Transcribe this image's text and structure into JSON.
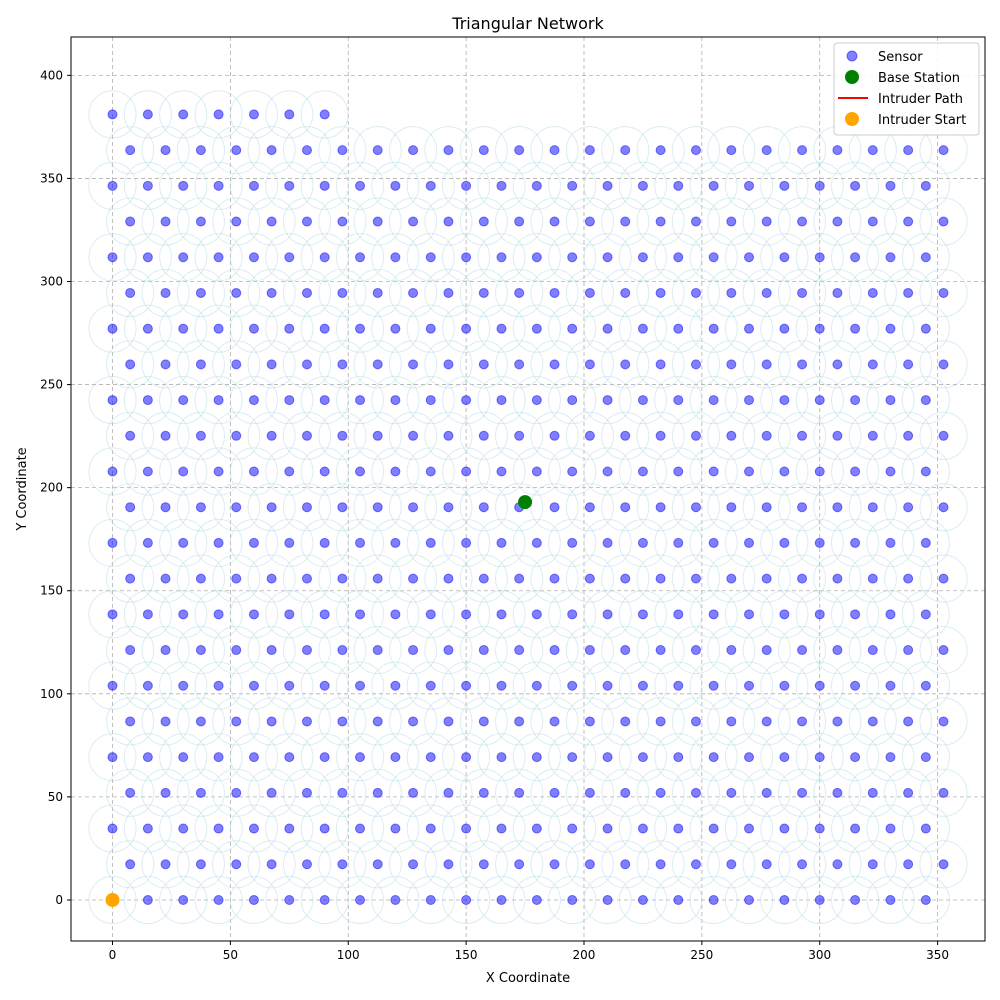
{
  "chart_data": {
    "type": "scatter",
    "title": "Triangular Network",
    "xlabel": "X Coordinate",
    "ylabel": "Y Coordinate",
    "xlim": [
      -17.6,
      370.1
    ],
    "ylim": [
      -19.9,
      418.6
    ],
    "xticks": [
      0,
      50,
      100,
      150,
      200,
      250,
      300,
      350
    ],
    "yticks": [
      0,
      50,
      100,
      150,
      200,
      250,
      300,
      350,
      400
    ],
    "grid": true,
    "legend_position": "top-right",
    "sensor_grid": {
      "row_spacing": 17.32,
      "x_spacing": 15,
      "even_row_x_start": 0,
      "odd_row_x_start": 7.5,
      "rows": 23,
      "x_max": 352.5,
      "last_row_x_max": 97.5,
      "coverage_radius": 10
    },
    "series": [
      {
        "name": "Sensor",
        "color": "#0000ff",
        "marker": "circle",
        "alpha": 0.5
      },
      {
        "name": "Base Station",
        "color": "#008000",
        "marker": "circle",
        "points": [
          [
            175,
            193
          ]
        ]
      },
      {
        "name": "Intruder Path",
        "color": "#ff0000",
        "marker": "line",
        "points": []
      },
      {
        "name": "Intruder Start",
        "color": "#ffa500",
        "marker": "circle",
        "points": [
          [
            0,
            0
          ]
        ]
      }
    ],
    "coverage_color": "#add8e6"
  }
}
